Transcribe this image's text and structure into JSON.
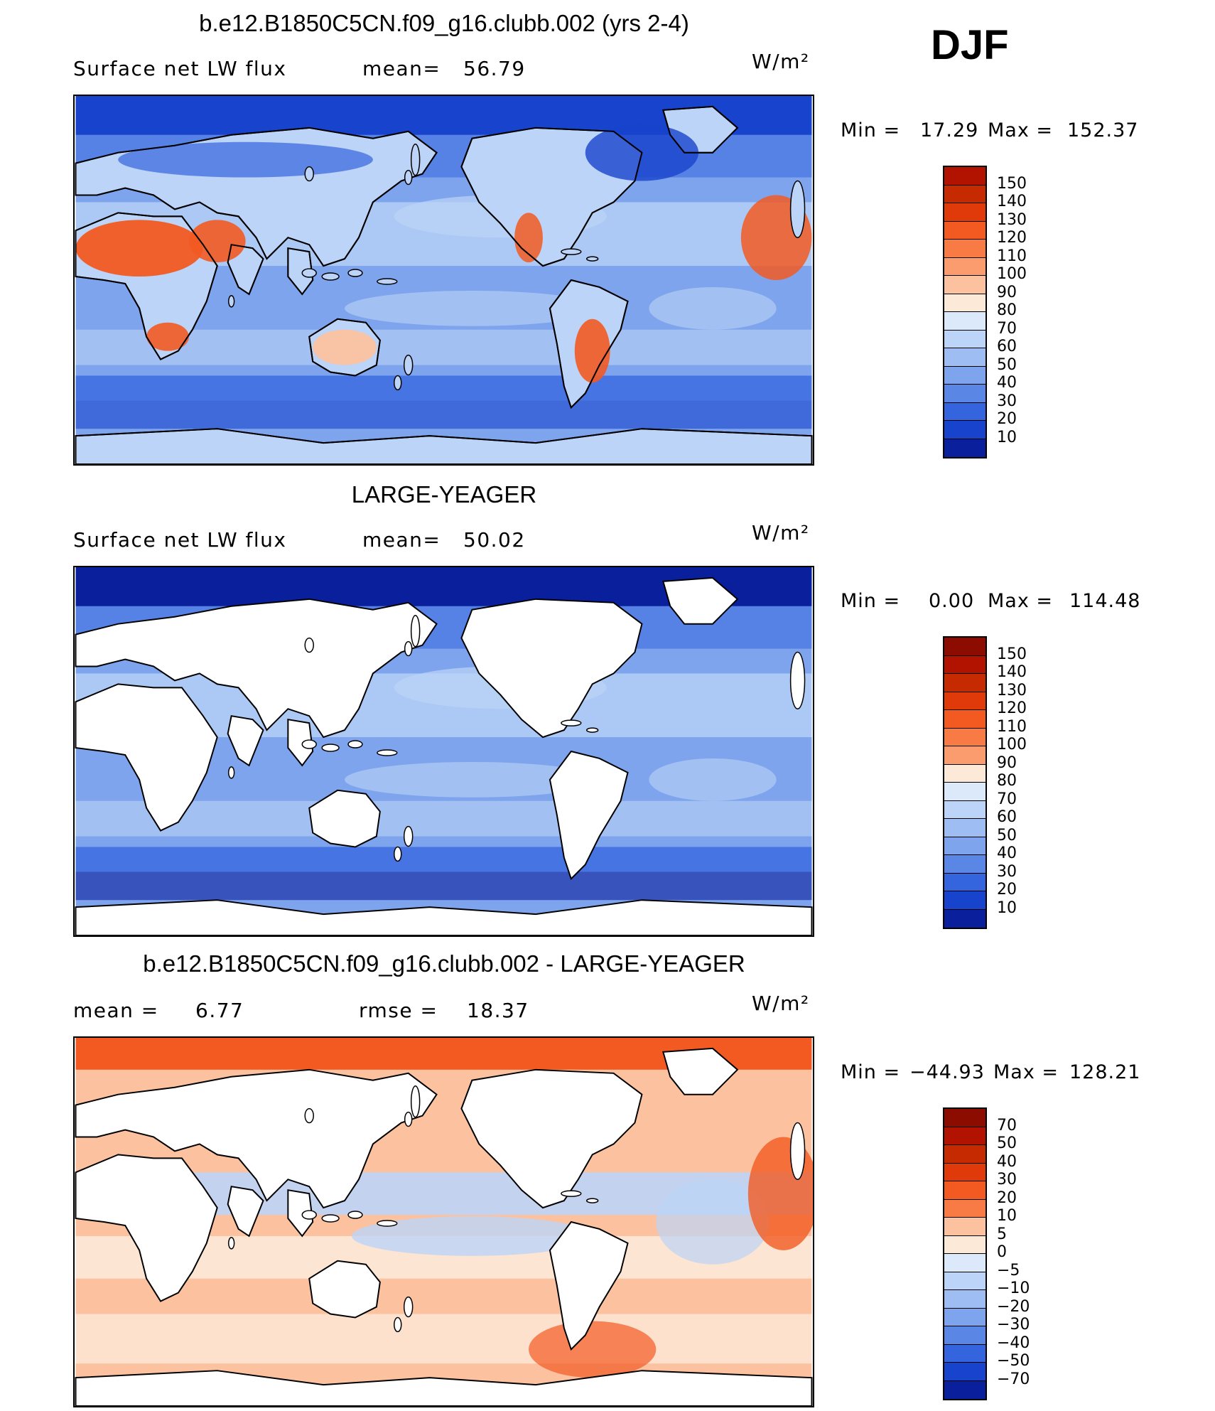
{
  "season": "DJF",
  "panels": [
    {
      "title": "b.e12.B1850C5CN.f09_g16.clubb.002 (yrs 2-4)",
      "left_label": "Surface net LW flux",
      "middle_label": "mean=",
      "middle_value": "56.79",
      "units": "W/m²",
      "min_label": "Min  =",
      "min_value": "17.29",
      "max_label": "Max  =",
      "max_value": "152.37",
      "colorbar_ticks": [
        "150",
        "140",
        "130",
        "120",
        "110",
        "100",
        "90",
        "80",
        "70",
        "60",
        "50",
        "40",
        "30",
        "20",
        "10"
      ],
      "colorbar_colors": [
        "#b21200",
        "#c52a00",
        "#e13a0a",
        "#f25a22",
        "#f87a44",
        "#fb9c6e",
        "#fcc2a0",
        "#fde9d8",
        "#dbe9fa",
        "#bcd4f7",
        "#9ebdf2",
        "#7ea4ed",
        "#5a86e6",
        "#3464de",
        "#1843cc",
        "#0a1f9b"
      ],
      "map_kind": "full",
      "map_colors": {
        "ocean_base": "#7ea4ed",
        "polar": "#1843cc",
        "hot": "#f25a22",
        "warm": "#fcc2a0",
        "cool": "#bcd4f7"
      }
    },
    {
      "title": "LARGE-YEAGER",
      "left_label": "Surface net LW flux",
      "middle_label": "mean=",
      "middle_value": "50.02",
      "units": "W/m²",
      "min_label": "Min  =",
      "min_value": "0.00",
      "max_label": "Max  =",
      "max_value": "114.48",
      "colorbar_ticks": [
        "150",
        "140",
        "130",
        "120",
        "110",
        "100",
        "90",
        "80",
        "70",
        "60",
        "50",
        "40",
        "30",
        "20",
        "10"
      ],
      "colorbar_colors": [
        "#8c0c00",
        "#b21200",
        "#c52a00",
        "#e13a0a",
        "#f25a22",
        "#f87a44",
        "#fb9c6e",
        "#fde9d8",
        "#dbe9fa",
        "#bcd4f7",
        "#9ebdf2",
        "#7ea4ed",
        "#5a86e6",
        "#3464de",
        "#1843cc",
        "#0a1f9b"
      ],
      "map_kind": "ocean",
      "map_colors": {
        "ocean_base": "#7ea4ed",
        "polar": "#0a1f9b",
        "hot": "#fcc2a0",
        "warm": "#fde9d8",
        "cool": "#bcd4f7"
      }
    },
    {
      "title": "b.e12.B1850C5CN.f09_g16.clubb.002 - LARGE-YEAGER",
      "left_label": "mean  =",
      "left_value": "6.77",
      "middle_label": "rmse  =",
      "middle_value": "18.37",
      "units": "W/m²",
      "min_label": "Min  =",
      "min_value": "−44.93",
      "max_label": "Max  =",
      "max_value": "128.21",
      "colorbar_ticks": [
        "70",
        "50",
        "40",
        "30",
        "20",
        "10",
        "5",
        "0",
        "−5",
        "−10",
        "−20",
        "−30",
        "−40",
        "−50",
        "−70"
      ],
      "colorbar_colors": [
        "#8c0c00",
        "#b21200",
        "#c52a00",
        "#e13a0a",
        "#f25a22",
        "#f87a44",
        "#fcc2a0",
        "#fde9d8",
        "#dbe9fa",
        "#bcd4f7",
        "#9ebdf2",
        "#7ea4ed",
        "#5a86e6",
        "#3464de",
        "#1843cc",
        "#0a1f9b"
      ],
      "map_kind": "diff",
      "map_colors": {
        "ocean_base": "#fcc2a0",
        "polar": "#f25a22",
        "hot": "#f25a22",
        "warm": "#fde9d8",
        "cool": "#bcd4f7"
      }
    }
  ]
}
